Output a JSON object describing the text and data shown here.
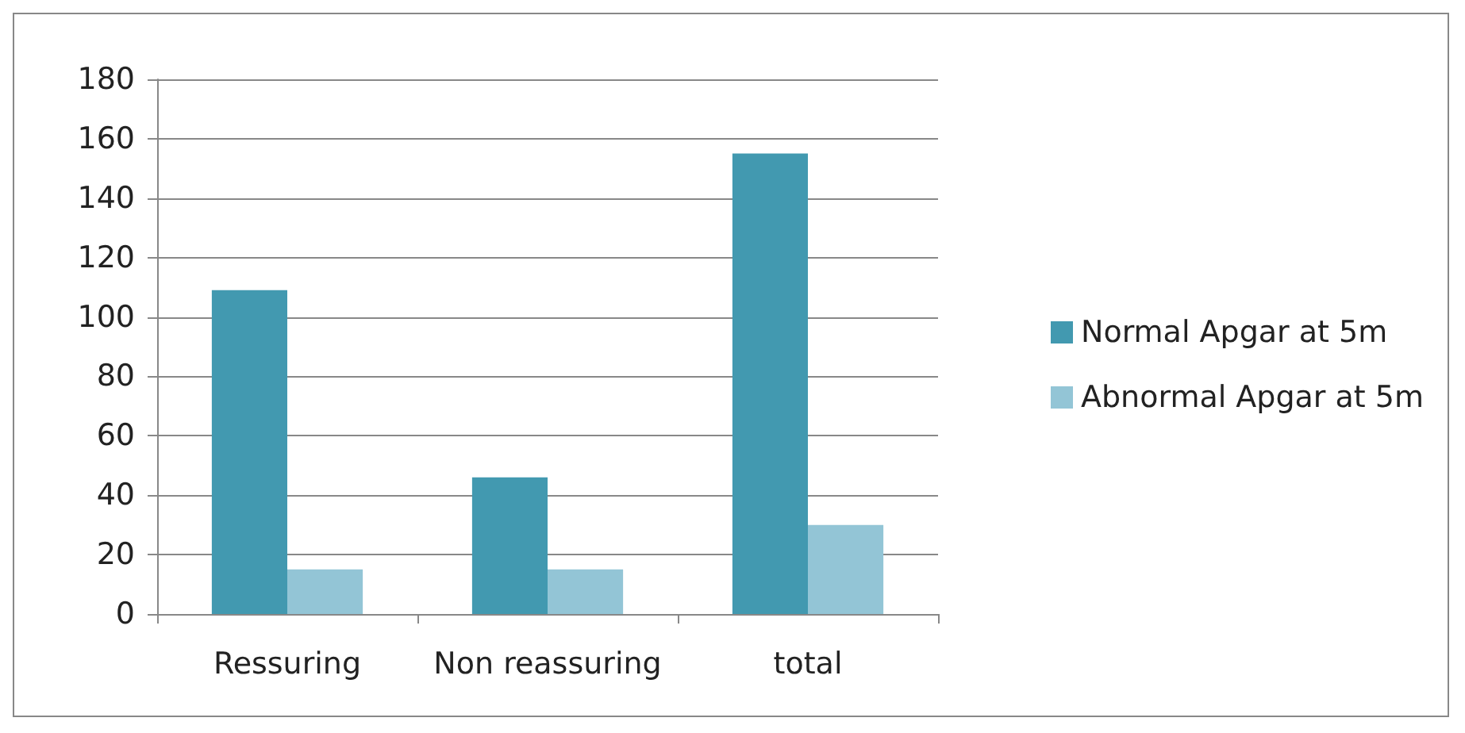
{
  "chart_data": {
    "type": "bar",
    "categories": [
      "Ressuring",
      "Non reassuring",
      "total"
    ],
    "series": [
      {
        "name": "Normal Apgar at 5m",
        "color": "#4299b0",
        "values": [
          109,
          46,
          155
        ]
      },
      {
        "name": "Abnormal Apgar at 5m",
        "color": "#93c5d6",
        "values": [
          15,
          15,
          30
        ]
      }
    ],
    "ylim": [
      0,
      180
    ],
    "yticks": [
      0,
      20,
      40,
      60,
      80,
      100,
      120,
      140,
      160,
      180
    ],
    "grid": "y",
    "legend": "right"
  }
}
